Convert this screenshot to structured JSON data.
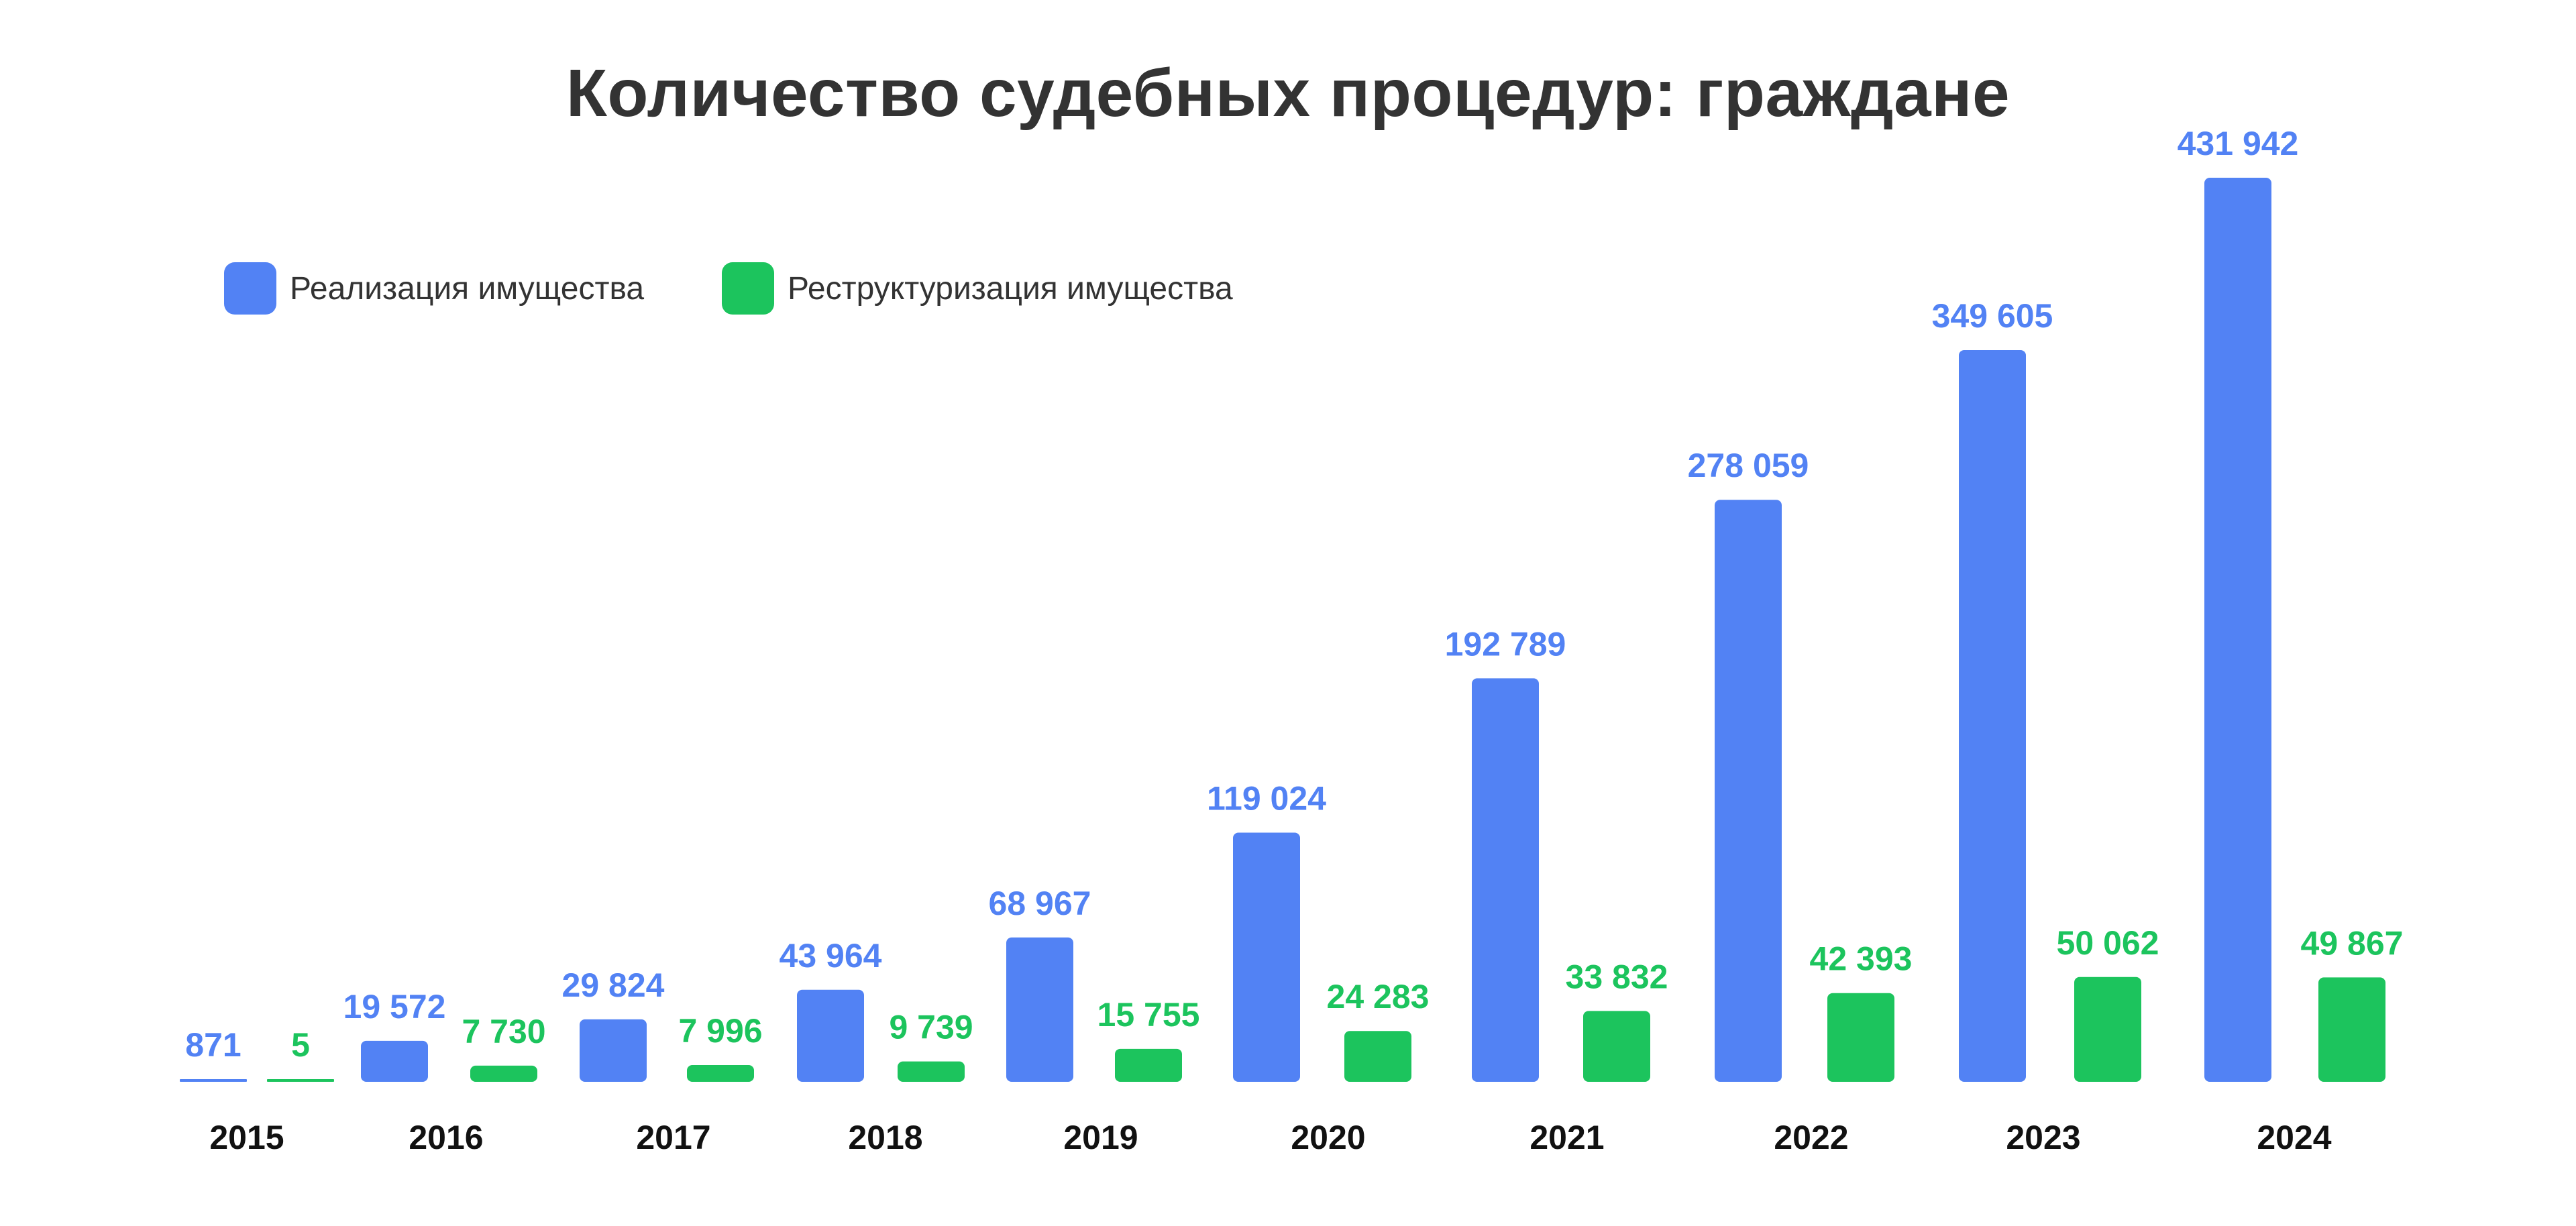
{
  "chart_data": {
    "type": "bar",
    "title": "Количество судебных процедур: граждане",
    "categories": [
      "2015",
      "2016",
      "2017",
      "2018",
      "2019",
      "2020",
      "2021",
      "2022",
      "2023",
      "2024"
    ],
    "series": [
      {
        "name": "Реализация имущества",
        "color": "#5282f4",
        "values": [
          871,
          19572,
          29824,
          43964,
          68967,
          119024,
          192789,
          278059,
          349605,
          431942
        ],
        "labels": [
          "871",
          "19 572",
          "29 824",
          "43 964",
          "68 967",
          "119 024",
          "192 789",
          "278 059",
          "349 605",
          "431 942"
        ]
      },
      {
        "name": "Реструктуризация имущества",
        "color": "#1cc45d",
        "values": [
          5,
          7730,
          7996,
          9739,
          15755,
          24283,
          33832,
          42393,
          50062,
          49867
        ],
        "labels": [
          "5",
          "7 730",
          "7 996",
          "9 739",
          "15 755",
          "24 283",
          "33 832",
          "42 393",
          "50 062",
          "49 867"
        ]
      }
    ],
    "xlabel": "",
    "ylabel": "",
    "legend_position": "top-left",
    "grid": false,
    "y_axis_visible": false
  }
}
